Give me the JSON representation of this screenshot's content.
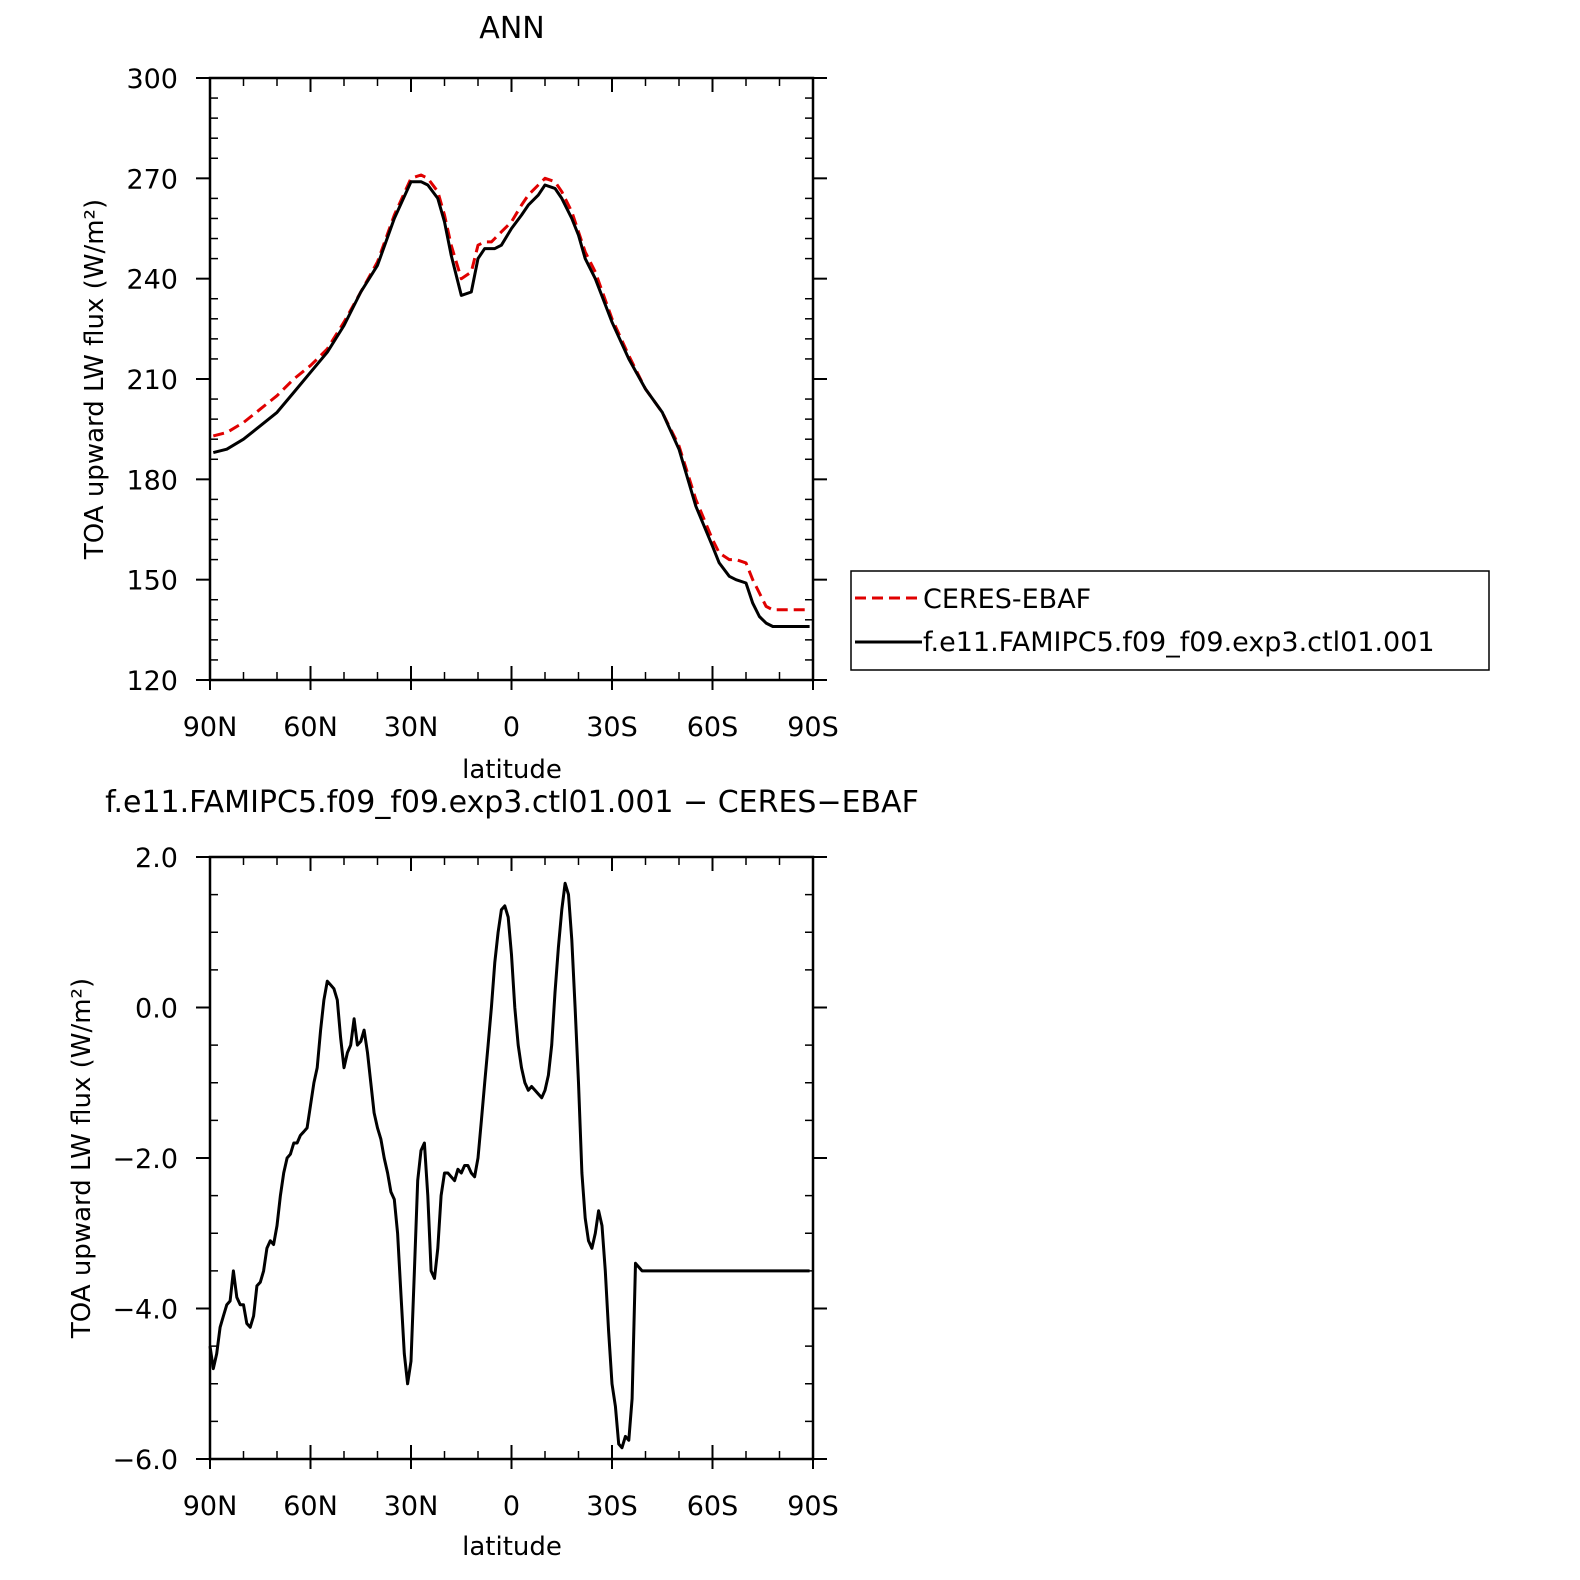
{
  "chart_data": [
    {
      "type": "line",
      "title": "ANN",
      "xlabel": "latitude",
      "ylabel": "TOA upward LW flux (W/m²)",
      "xlim": [
        90,
        -90
      ],
      "ylim": [
        120,
        300
      ],
      "x_ticks": [
        90,
        60,
        30,
        0,
        -30,
        -60,
        -90
      ],
      "x_tick_labels": [
        "90N",
        "60N",
        "30N",
        "0",
        "30S",
        "60S",
        "90S"
      ],
      "y_ticks": [
        120,
        150,
        180,
        210,
        240,
        270,
        300
      ],
      "y_tick_labels": [
        "120",
        "150",
        "180",
        "210",
        "240",
        "270",
        "300"
      ],
      "legend_position": "right",
      "series": [
        {
          "name": "CERES-EBAF",
          "color": "#e00000",
          "dash": "dashed",
          "x": [
            89,
            85,
            80,
            75,
            70,
            65,
            60,
            55,
            50,
            45,
            40,
            35,
            30,
            27,
            25,
            22,
            20,
            18,
            15,
            12,
            10,
            8,
            6,
            5,
            3,
            0,
            -3,
            -5,
            -8,
            -10,
            -13,
            -15,
            -18,
            -20,
            -22,
            -25,
            -30,
            -35,
            -40,
            -45,
            -50,
            -55,
            -60,
            -62,
            -65,
            -67,
            -70,
            -72,
            -74,
            -76,
            -78,
            -80,
            -82,
            -85,
            -87,
            -89
          ],
          "y": [
            193,
            194,
            197,
            201,
            205,
            210,
            214,
            219,
            227,
            236,
            245,
            259,
            270,
            271,
            270,
            266,
            259,
            250,
            240,
            242,
            250,
            251,
            251,
            252,
            254,
            257,
            262,
            265,
            268,
            270,
            269,
            266,
            260,
            254,
            248,
            242,
            228,
            217,
            207,
            200,
            190,
            174,
            162,
            158,
            156,
            156,
            155,
            150,
            146,
            142,
            141,
            141,
            141,
            141,
            141,
            141
          ]
        },
        {
          "name": "f.e11.FAMIPC5.f09_f09.exp3.ctl01.001",
          "color": "#000000",
          "dash": "solid",
          "x": [
            89,
            85,
            80,
            75,
            70,
            65,
            60,
            55,
            50,
            45,
            40,
            35,
            30,
            27,
            25,
            22,
            20,
            18,
            15,
            12,
            10,
            8,
            6,
            5,
            3,
            0,
            -3,
            -5,
            -8,
            -10,
            -13,
            -15,
            -18,
            -20,
            -22,
            -25,
            -30,
            -35,
            -40,
            -45,
            -50,
            -55,
            -60,
            -62,
            -65,
            -67,
            -70,
            -72,
            -74,
            -76,
            -78,
            -80,
            -82,
            -85,
            -87,
            -89
          ],
          "y": [
            188,
            189,
            192,
            196,
            200,
            206,
            212,
            218,
            226,
            236,
            244,
            258,
            269,
            269,
            268,
            264,
            257,
            247,
            235,
            236,
            246,
            249,
            249,
            249,
            250,
            255,
            259,
            262,
            265,
            268,
            267,
            264,
            258,
            253,
            246,
            240,
            227,
            216,
            207,
            200,
            189,
            172,
            160,
            155,
            151,
            150,
            149,
            143,
            139,
            137,
            136,
            136,
            136,
            136,
            136,
            136
          ]
        }
      ]
    },
    {
      "type": "line",
      "title": "f.e11.FAMIPC5.f09_f09.exp3.ctl01.001 − CERES−EBAF",
      "xlabel": "latitude",
      "ylabel": "TOA upward LW flux (W/m²)",
      "xlim": [
        90,
        -90
      ],
      "ylim": [
        -6,
        2
      ],
      "x_ticks": [
        90,
        60,
        30,
        0,
        -30,
        -60,
        -90
      ],
      "x_tick_labels": [
        "90N",
        "60N",
        "30N",
        "0",
        "30S",
        "60S",
        "90S"
      ],
      "y_ticks": [
        -6,
        -4,
        -2,
        0,
        2
      ],
      "y_tick_labels": [
        "−6.0",
        "−4.0",
        "−2.0",
        "0.0",
        "2.0"
      ],
      "series": [
        {
          "color": "#000000",
          "dash": "solid",
          "x": [
            90,
            89,
            88,
            87,
            86,
            85,
            84,
            83,
            82,
            81,
            80,
            79,
            78,
            77,
            76,
            75,
            74,
            73,
            72,
            71,
            70,
            69,
            68,
            67,
            66,
            65,
            64,
            63,
            62,
            61,
            60,
            59,
            58,
            57,
            56,
            55,
            54,
            53,
            52,
            51,
            50,
            49,
            48,
            47,
            46,
            45,
            44,
            43,
            42,
            41,
            40,
            39,
            38,
            37,
            36,
            35,
            34,
            33,
            32,
            31,
            30,
            29,
            28,
            27,
            26,
            25,
            24,
            23,
            22,
            21,
            20,
            19,
            18,
            17,
            16,
            15,
            14,
            13,
            12,
            11,
            10,
            9,
            8,
            7,
            6,
            5,
            4,
            3,
            2,
            1,
            0,
            -1,
            -2,
            -3,
            -4,
            -5,
            -6,
            -7,
            -8,
            -9,
            -10,
            -11,
            -12,
            -13,
            -14,
            -15,
            -16,
            -17,
            -18,
            -19,
            -20,
            -21,
            -22,
            -23,
            -24,
            -25,
            -26,
            -27,
            -28,
            -29,
            -30,
            -31,
            -32,
            -33,
            -34,
            -35,
            -36,
            -37,
            -38,
            -39,
            -40,
            -41,
            -42,
            -43,
            -44,
            -45,
            -46,
            -47,
            -48,
            -49,
            -50,
            -51,
            -52,
            -53,
            -54,
            -55,
            -56,
            -57,
            -58,
            -59,
            -60,
            -61,
            -62,
            -63,
            -64,
            -65,
            -66,
            -67,
            -68,
            -69,
            -70,
            -71,
            -72,
            -73,
            -74,
            -75,
            -76,
            -77,
            -78,
            -79,
            -80,
            -81,
            -82,
            -83,
            -84,
            -85,
            -86,
            -87,
            -88,
            -89
          ],
          "y": [
            -4.5,
            -4.8,
            -4.6,
            -4.25,
            -4.1,
            -3.95,
            -3.9,
            -3.5,
            -3.85,
            -3.95,
            -3.95,
            -4.2,
            -4.25,
            -4.1,
            -3.7,
            -3.65,
            -3.5,
            -3.2,
            -3.1,
            -3.15,
            -2.9,
            -2.5,
            -2.2,
            -2.0,
            -1.95,
            -1.8,
            -1.8,
            -1.7,
            -1.65,
            -1.6,
            -1.3,
            -1.0,
            -0.8,
            -0.3,
            0.1,
            0.35,
            0.3,
            0.25,
            0.1,
            -0.4,
            -0.8,
            -0.6,
            -0.5,
            -0.15,
            -0.5,
            -0.45,
            -0.3,
            -0.6,
            -1.0,
            -1.4,
            -1.6,
            -1.75,
            -2.0,
            -2.2,
            -2.45,
            -2.55,
            -3.0,
            -3.8,
            -4.6,
            -5.0,
            -4.7,
            -3.5,
            -2.3,
            -1.9,
            -1.8,
            -2.5,
            -3.5,
            -3.6,
            -3.2,
            -2.5,
            -2.2,
            -2.2,
            -2.25,
            -2.3,
            -2.15,
            -2.2,
            -2.1,
            -2.1,
            -2.2,
            -2.25,
            -2.0,
            -1.5,
            -1.0,
            -0.5,
            0.0,
            0.6,
            1.0,
            1.3,
            1.35,
            1.2,
            0.7,
            0.0,
            -0.5,
            -0.8,
            -1.0,
            -1.1,
            -1.05,
            -1.1,
            -1.15,
            -1.2,
            -1.1,
            -0.9,
            -0.5,
            0.2,
            0.8,
            1.3,
            1.65,
            1.5,
            0.9,
            0.0,
            -1.0,
            -2.2,
            -2.8,
            -3.1,
            -3.2,
            -3.0,
            -2.7,
            -2.9,
            -3.5,
            -4.3,
            -5.0,
            -5.3,
            -5.8,
            -5.85,
            -5.7,
            -5.75,
            -5.2,
            -3.4,
            -3.45,
            -3.5,
            -3.5,
            -3.5,
            -3.5,
            -3.5,
            -3.5,
            -3.5,
            -3.5,
            -3.5,
            -3.5,
            -3.5,
            -3.5,
            -3.5,
            -3.5,
            -3.5,
            -3.5,
            -3.5,
            -3.5,
            -3.5,
            -3.5,
            -3.5,
            -3.5,
            -3.5,
            -3.5,
            -3.5,
            -3.5,
            -3.5,
            -3.5,
            -3.5,
            -3.5,
            -3.5,
            -3.5,
            -3.5,
            -3.5,
            -3.5,
            -3.5,
            -3.5,
            -3.5,
            -3.5,
            -3.5,
            -3.5,
            -3.5,
            -3.5,
            -3.5,
            -3.5,
            -3.5,
            -3.5,
            -3.5,
            -3.5,
            -3.5,
            -3.5
          ]
        }
      ]
    }
  ]
}
